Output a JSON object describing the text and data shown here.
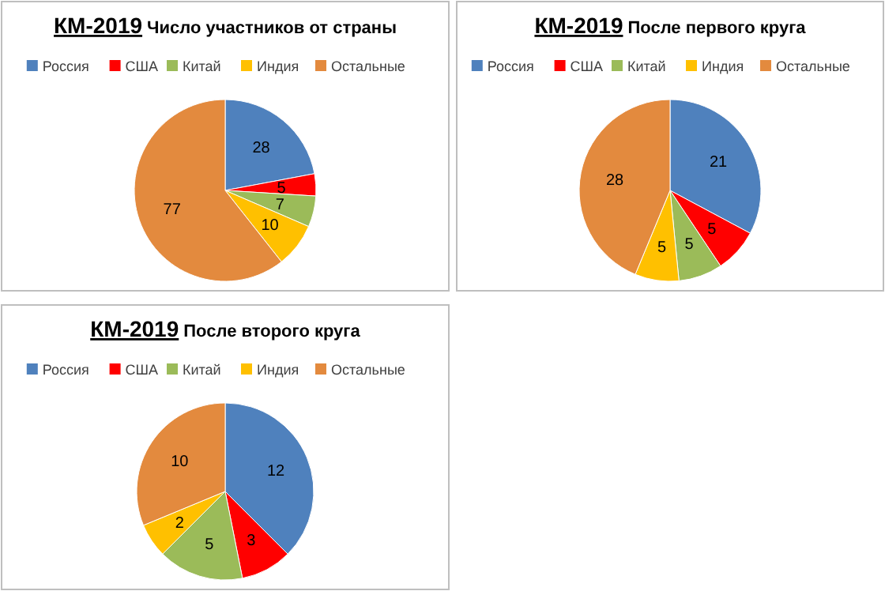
{
  "chart_data": [
    {
      "type": "pie",
      "title": "КМ-2019",
      "subtitle": "Число  участников  от страны",
      "categories": [
        "Россия",
        "США",
        "Китай",
        "Индия",
        "Остальные"
      ],
      "values": [
        28,
        5,
        7,
        10,
        77
      ],
      "colors": [
        "#4f81bd",
        "#ff0000",
        "#9bbb59",
        "#ffc000",
        "#e38a3e"
      ],
      "data_labels": true,
      "legend": "top"
    },
    {
      "type": "pie",
      "title": "КМ-2019",
      "subtitle": "После первого круга",
      "categories": [
        "Россия",
        "США",
        "Китай",
        "Индия",
        "Остальные"
      ],
      "values": [
        21,
        5,
        5,
        5,
        28
      ],
      "colors": [
        "#4f81bd",
        "#ff0000",
        "#9bbb59",
        "#ffc000",
        "#e38a3e"
      ],
      "data_labels": true,
      "legend": "top"
    },
    {
      "type": "pie",
      "title": "КМ-2019",
      "subtitle": "После второго круга",
      "categories": [
        "Россия",
        "США",
        "Китай",
        "Индия",
        "Остальные"
      ],
      "values": [
        12,
        3,
        5,
        2,
        10
      ],
      "colors": [
        "#4f81bd",
        "#ff0000",
        "#9bbb59",
        "#ffc000",
        "#e38a3e"
      ],
      "data_labels": true,
      "legend": "top"
    }
  ]
}
